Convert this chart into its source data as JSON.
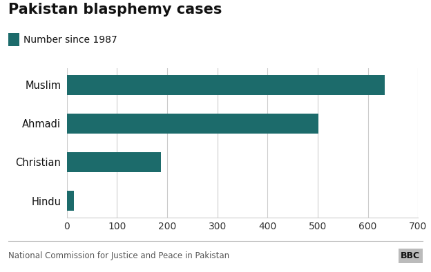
{
  "title": "Pakistan blasphemy cases",
  "legend_label": "Number since 1987",
  "categories": [
    "Hindu",
    "Christian",
    "Ahmadi",
    "Muslim"
  ],
  "values": [
    14,
    187,
    501,
    633
  ],
  "bar_color": "#1c6b6b",
  "background_color": "#ffffff",
  "xlim": [
    0,
    700
  ],
  "xticks": [
    0,
    100,
    200,
    300,
    400,
    500,
    600,
    700
  ],
  "title_fontsize": 15,
  "label_fontsize": 10.5,
  "tick_fontsize": 10,
  "legend_fontsize": 10,
  "footer_text": "National Commission for Justice and Peace in Pakistan",
  "bbc_text": "BBC",
  "grid_color": "#cccccc",
  "bar_height": 0.52
}
